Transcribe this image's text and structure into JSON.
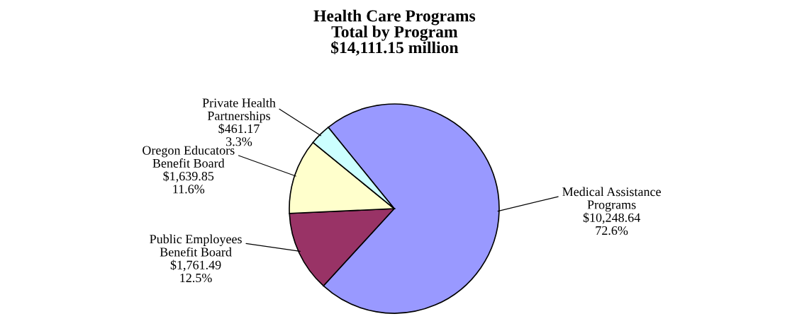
{
  "chart_data": {
    "type": "pie",
    "title": "Health Care Programs\nTotal by Program\n$14,111.15 million",
    "categories": [
      "Medical Assistance\nPrograms",
      "Public Employees\nBenefit Board",
      "Oregon Educators\nBenefit Board",
      "Private Health\nPartnerships"
    ],
    "values": [
      10248.64,
      1761.49,
      1639.85,
      461.17
    ],
    "colors": [
      "#9999ff",
      "#993366",
      "#ffffcc",
      "#ccffff"
    ],
    "value_labels": [
      "$10,248.64\n72.6%",
      "$1,761.49\n12.5%",
      "$1,639.85\n11.6%",
      "$461.17\n3.3%"
    ],
    "legend": false
  }
}
